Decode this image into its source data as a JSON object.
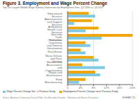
{
  "chart_data": {
    "type": "bar",
    "orientation": "horizontal",
    "title": "Figure 3. Employment and Wage Percent Change",
    "subtitle": "Top Ten Largest Middle Wage Industry Subsectors by Employment Size, Q3 2016 vs. Q3 2017",
    "annotations": [
      "Source: American Community Survey Public Use Microdata Samples. Tabulations by Beacon Economics.",
      "EXHIBIT 13"
    ],
    "categories": [
      "Educational Services",
      "Administration and Support Services",
      "Ambulatory Health Care Services",
      "Specialty Trade Contractors",
      "Executive, Legislation and General Government",
      "Real Estate",
      "Motor Vehicle and Parts Dealers",
      "Membership Associations and Organizations",
      "Repair and Maintenance",
      "Food Manufacturing"
    ],
    "series": [
      {
        "name": "Wage Percent Change Snc. a Previous Study",
        "color": "#7ec8e3",
        "values": [
          8.5,
          2.0,
          5.5,
          10.5,
          7.0,
          5.5,
          9.5,
          11.5,
          10.0,
          3.5
        ]
      },
      {
        "name": "Employment Percent Change since Previous Study",
        "color": "#f0a500",
        "values": [
          6.5,
          7.5,
          9.5,
          20.0,
          5.5,
          4.0,
          8.0,
          4.5,
          8.5,
          5.5
        ]
      }
    ],
    "xlim": [
      0,
      20
    ],
    "xticks": [
      0,
      {
        "value": 4,
        "label": "4%"
      },
      {
        "value": 8,
        "label": "8%"
      },
      {
        "value": 12,
        "label": "12%"
      },
      {
        "value": 16,
        "label": "16%"
      },
      {
        "value": 20,
        "label": "20%"
      }
    ],
    "grid": true,
    "legend": "lower left"
  }
}
